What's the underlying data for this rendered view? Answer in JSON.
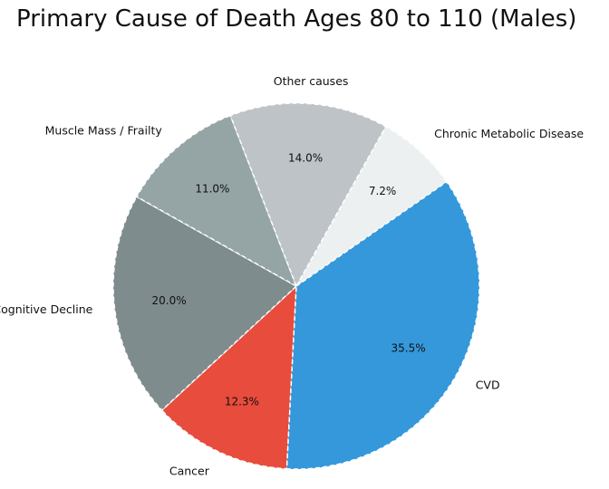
{
  "chart_data": {
    "type": "pie",
    "title": "Primary Cause of Death Ages 80 to 110 (Males)",
    "categories": [
      "Cancer",
      "Cognitive Decline",
      "Muscle Mass / Frailty",
      "Other causes",
      "Chronic Metabolic Disease",
      "CVD"
    ],
    "values": [
      12.3,
      20.0,
      11.0,
      14.0,
      7.2,
      35.5
    ],
    "value_labels": [
      "12.3%",
      "20.0%",
      "11.0%",
      "14.0%",
      "7.2%",
      "35.5%"
    ],
    "colors": [
      "#e74c3c",
      "#7f8c8d",
      "#95a5a6",
      "#bdc3c7",
      "#ecf0f1",
      "#3498db"
    ],
    "slice_border": "dashed-white"
  }
}
